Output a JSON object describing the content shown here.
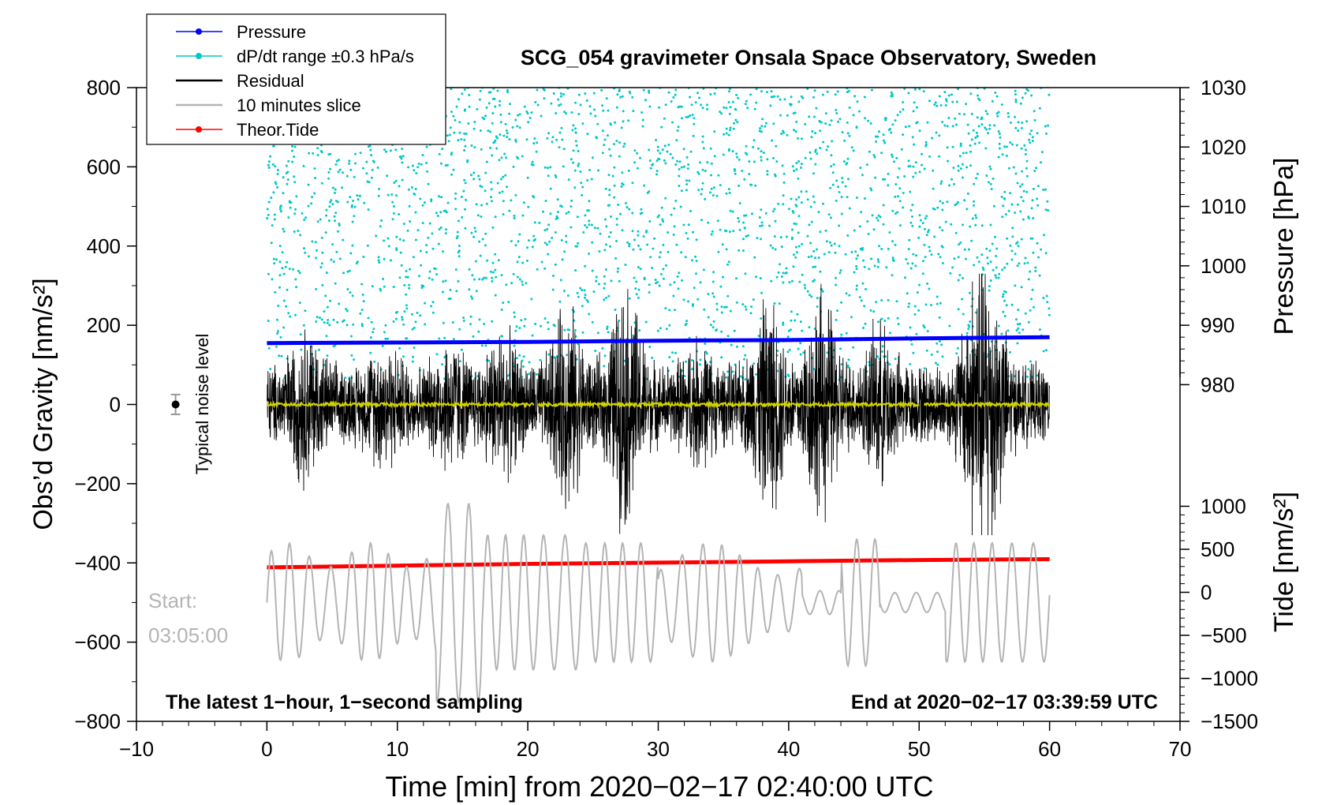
{
  "chart_data": {
    "type": "line",
    "title": "SCG_054 gravimeter Onsala Space Observatory, Sweden",
    "xlabel": "Time [min] from 2020−02−17 02:40:00 UTC",
    "ylabel_left": "Obs’d Gravity [nm/s²]",
    "ylabel_right_top": "Pressure [hPa]",
    "ylabel_right_bottom": "Tide [nm/s²]",
    "xlim": [
      -10,
      70
    ],
    "ylim_left": [
      -800,
      800
    ],
    "x_ticks": [
      "−10",
      "0",
      "10",
      "20",
      "30",
      "40",
      "50",
      "60",
      "70"
    ],
    "x_tick_values": [
      -10,
      0,
      10,
      20,
      30,
      40,
      50,
      60,
      70
    ],
    "y_left_ticks": [
      "800",
      "600",
      "400",
      "200",
      "0",
      "−200",
      "−400",
      "−600",
      "−800"
    ],
    "y_left_tick_values": [
      800,
      600,
      400,
      200,
      0,
      -200,
      -400,
      -600,
      -800
    ],
    "pressure_axis": {
      "ticks": [
        "1030",
        "1020",
        "1010",
        "1000",
        "990",
        "980"
      ],
      "tick_values": [
        1030,
        1020,
        1010,
        1000,
        990,
        980
      ],
      "range": [
        970,
        1030
      ]
    },
    "tide_axis": {
      "ticks": [
        "1000",
        "500",
        "0",
        "−500",
        "−1000",
        "−1500"
      ],
      "tick_values": [
        1000,
        500,
        0,
        -500,
        -1000,
        -1500
      ],
      "range": [
        -1500,
        1000
      ]
    },
    "legend": {
      "placement": "top-left",
      "entries": [
        {
          "label": "Pressure",
          "color": "#0000ff",
          "marker": true
        },
        {
          "label": "dP/dt range ±0.3 hPa/s",
          "color": "#00c8c8",
          "marker": true
        },
        {
          "label": "Residual",
          "color": "#000000",
          "marker": false
        },
        {
          "label": "10 minutes slice",
          "color": "#b4b4b4",
          "marker": false
        },
        {
          "label": "Theor.Tide",
          "color": "#ff0000",
          "marker": true
        }
      ]
    },
    "series": [
      {
        "name": "Pressure",
        "axis": "pressure",
        "x": [
          0,
          10,
          20,
          30,
          40,
          50,
          60
        ],
        "values": [
          987.0,
          987.1,
          987.2,
          987.4,
          987.5,
          987.8,
          988.0
        ]
      },
      {
        "name": "Theor.Tide",
        "axis": "tide",
        "x": [
          0,
          10,
          20,
          30,
          40,
          50,
          60
        ],
        "values": [
          290,
          310,
          330,
          345,
          360,
          375,
          385
        ]
      },
      {
        "name": "Residual",
        "axis": "gravity",
        "note": "high-frequency noise around 0, envelope approx ±150 to ±300 nm/s²",
        "x": [
          0,
          60
        ],
        "values": [
          0,
          0
        ]
      },
      {
        "name": "dP/dt range ±0.3 hPa/s",
        "axis": "gravity",
        "note": "scatter of points between approx 60 and 800 nm/s² over x 0–60"
      }
    ],
    "annotations": {
      "noise_label": "Typical noise level",
      "start_label": "Start:",
      "start_time": "03:05:00",
      "bottom_left": "The latest 1−hour, 1−second sampling",
      "bottom_right": "End at 2020−02−17 03:39:59 UTC"
    },
    "colors": {
      "pressure": "#0000ff",
      "dpdt": "#00c8c8",
      "residual": "#000000",
      "slice": "#b4b4b4",
      "tide": "#ff0000",
      "mean": "#d2d200"
    }
  }
}
